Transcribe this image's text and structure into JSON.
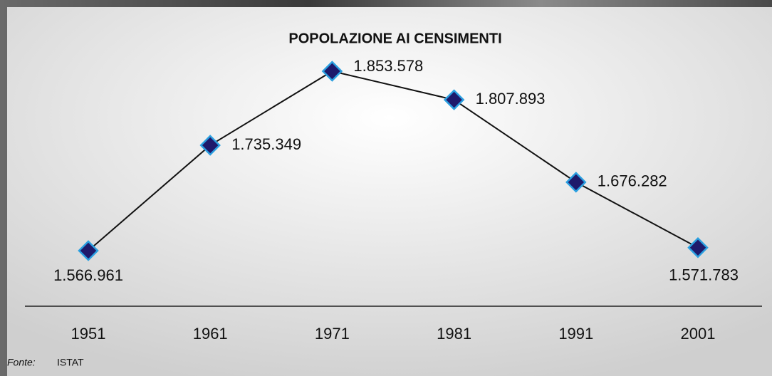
{
  "chart_data": {
    "type": "line",
    "title": "POPOLAZIONE AI CENSIMENTI",
    "x": [
      1951,
      1961,
      1971,
      1981,
      1991,
      2001
    ],
    "series": [
      {
        "color": "#1e1a6b",
        "values": [
          1566961,
          1735349,
          1853578,
          1807893,
          1676282,
          1571783
        ],
        "value_labels": [
          "1.566.961",
          "1.735.349",
          "1.853.578",
          "1.807.893",
          "1.676.282",
          "1.571.783"
        ]
      }
    ],
    "source_label": "Fonte:",
    "source": "ISTAT"
  }
}
